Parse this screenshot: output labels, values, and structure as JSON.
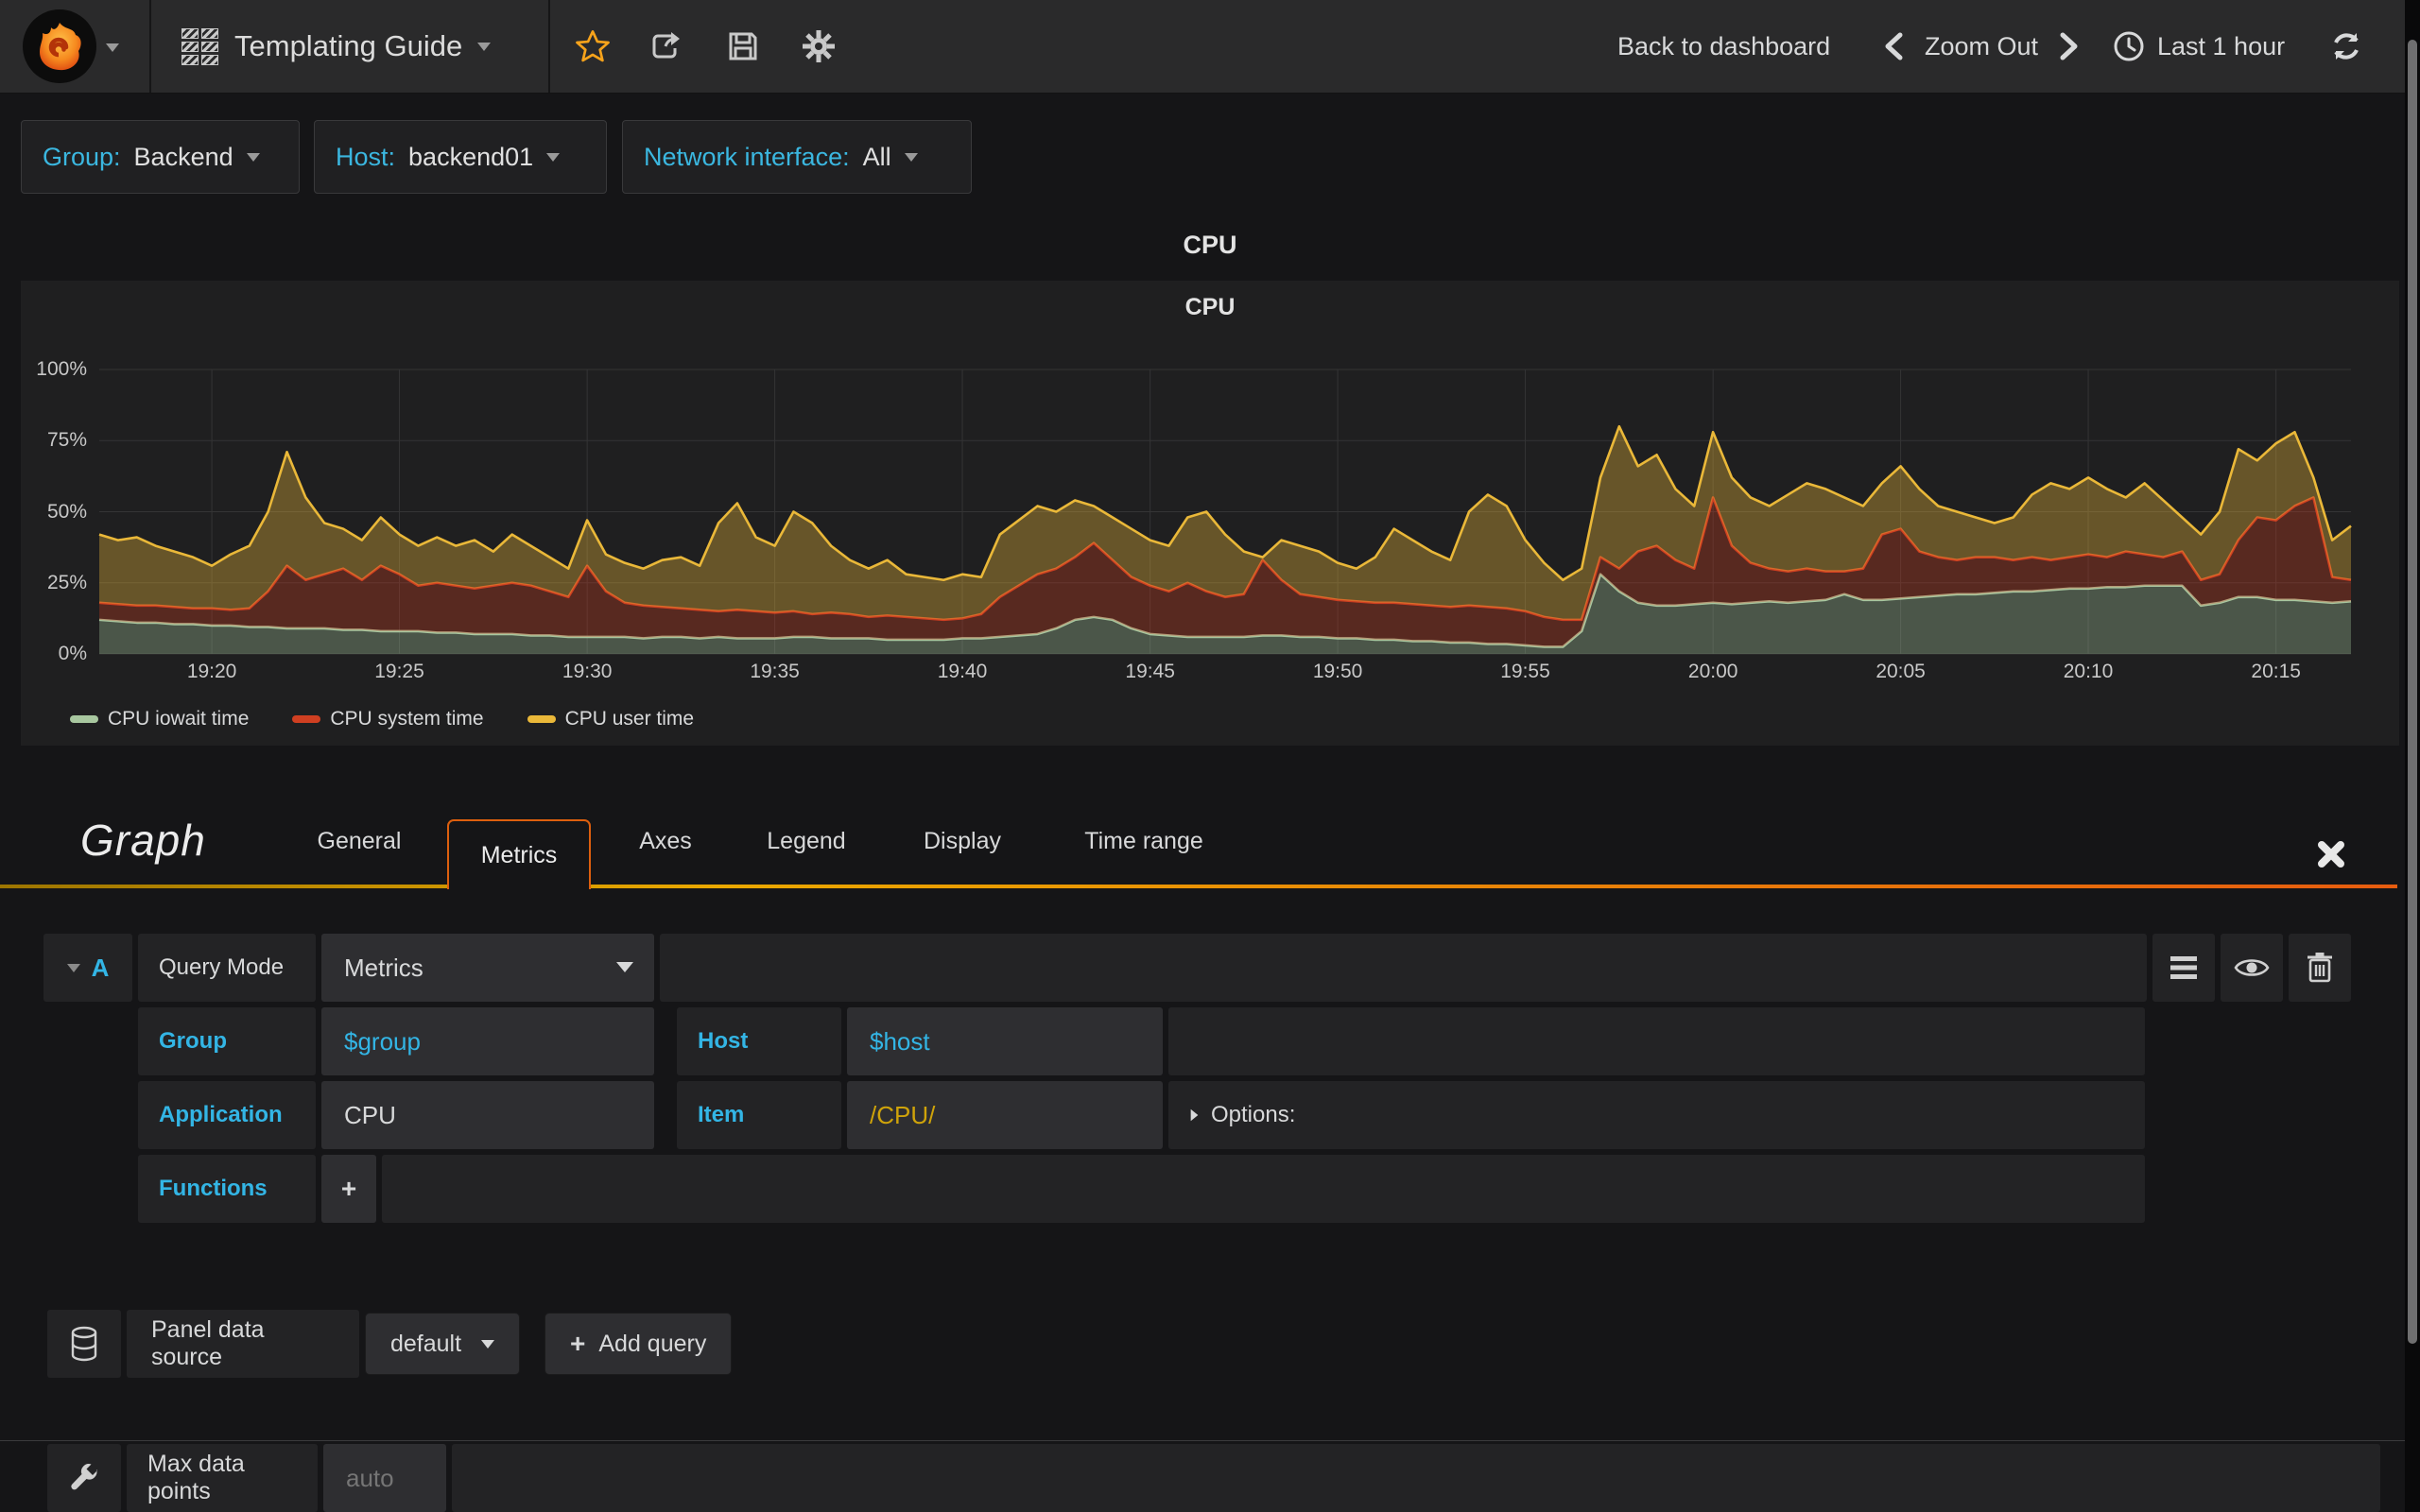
{
  "navbar": {
    "title": "Templating Guide",
    "back": "Back to dashboard",
    "zoom_out": "Zoom Out",
    "time_range": "Last 1 hour"
  },
  "variables": [
    {
      "label": "Group:",
      "value": "Backend"
    },
    {
      "label": "Host:",
      "value": "backend01"
    },
    {
      "label": "Network interface:",
      "value": "All"
    }
  ],
  "row_title": "CPU",
  "panel_title": "CPU",
  "editor": {
    "title": "Graph",
    "tabs": [
      {
        "label": "General"
      },
      {
        "label": "Metrics"
      },
      {
        "label": "Axes"
      },
      {
        "label": "Legend"
      },
      {
        "label": "Display"
      },
      {
        "label": "Time range"
      }
    ],
    "query": {
      "letter": "A",
      "mode_label": "Query Mode",
      "mode_value": "Metrics",
      "group_label": "Group",
      "group_value": "$group",
      "host_label": "Host",
      "host_value": "$host",
      "application_label": "Application",
      "application_value": "CPU",
      "item_label": "Item",
      "item_value": "/CPU/",
      "options_label": "Options:",
      "functions_label": "Functions",
      "add_function": "+"
    },
    "datasource": {
      "label": "Panel data source",
      "value": "default",
      "add_query_plus": "+",
      "add_query_label": "Add query"
    },
    "max_data_points": {
      "label": "Max data points",
      "placeholder": "auto"
    }
  },
  "chart_data": {
    "type": "area",
    "stacked": true,
    "title": "CPU",
    "unit": "%",
    "ylim": [
      0,
      100
    ],
    "grid": true,
    "legend_position": "bottom",
    "x_start": "19:17",
    "x_end": "20:17",
    "note": "series 'top' arrays are cumulative stack tops in percent, 121 samples over 1 hour",
    "y_ticks": [
      {
        "label": "0%",
        "v": 0
      },
      {
        "label": "25%",
        "v": 25
      },
      {
        "label": "50%",
        "v": 50
      },
      {
        "label": "75%",
        "v": 75
      },
      {
        "label": "100%",
        "v": 100
      }
    ],
    "ticks": [
      {
        "label": "19:20",
        "f": 0.05
      },
      {
        "label": "19:25",
        "f": 0.1333
      },
      {
        "label": "19:30",
        "f": 0.2167
      },
      {
        "label": "19:35",
        "f": 0.3
      },
      {
        "label": "19:40",
        "f": 0.3833
      },
      {
        "label": "19:45",
        "f": 0.4667
      },
      {
        "label": "19:50",
        "f": 0.55
      },
      {
        "label": "19:55",
        "f": 0.6333
      },
      {
        "label": "20:00",
        "f": 0.7167
      },
      {
        "label": "20:05",
        "f": 0.8
      },
      {
        "label": "20:10",
        "f": 0.8833
      },
      {
        "label": "20:15",
        "f": 0.9667
      }
    ],
    "series": [
      {
        "name": "CPU iowait time",
        "color": "#a8c79f",
        "fill": "rgba(168,199,159,0.33)",
        "top": [
          12,
          11.5,
          11,
          11,
          10.5,
          10.5,
          10,
          10,
          9.5,
          9.5,
          9,
          9,
          9,
          8.5,
          8.5,
          8,
          8,
          8,
          7.5,
          7.5,
          7,
          7,
          7,
          6.5,
          6.5,
          6,
          6,
          6,
          6,
          5.5,
          6,
          6,
          5.5,
          6,
          5.5,
          5.5,
          5.5,
          6,
          6,
          5.5,
          5.5,
          5.5,
          5,
          5,
          5,
          5,
          5.5,
          5.5,
          6,
          6.5,
          7,
          9,
          12,
          13,
          12,
          9,
          7,
          6.5,
          6,
          6,
          6,
          6,
          6.5,
          6.5,
          6,
          6,
          5.5,
          5.5,
          5,
          5,
          4.5,
          4.5,
          4,
          4,
          3.5,
          3.5,
          3,
          2.5,
          2.5,
          8,
          28,
          22,
          18,
          17,
          17,
          17.5,
          18,
          17.5,
          18,
          18.5,
          18,
          18.5,
          19,
          21,
          19,
          19,
          19.5,
          20,
          20.5,
          21,
          21,
          21.5,
          22,
          22,
          22.5,
          23,
          23,
          23.5,
          23.5,
          24,
          24,
          24,
          17,
          18,
          20,
          20,
          19,
          19,
          18.5,
          18,
          18.5
        ]
      },
      {
        "name": "CPU system time",
        "color": "#cf3f21",
        "fill": "rgba(207,63,33,0.32)",
        "top": [
          18,
          17.5,
          17,
          17,
          16.5,
          16,
          16,
          15.5,
          16,
          22,
          31,
          26,
          28,
          30,
          26,
          31,
          28,
          24,
          25,
          24,
          23,
          24,
          25,
          24,
          22,
          20,
          31,
          22,
          18,
          17,
          16.5,
          16,
          15.5,
          15,
          15.5,
          15,
          14.5,
          15,
          14,
          14.5,
          14,
          13,
          13.5,
          13,
          12.5,
          12,
          12.5,
          14,
          20,
          24,
          28,
          30,
          34,
          39,
          33,
          27,
          24,
          22,
          25,
          22,
          20,
          21,
          33,
          26,
          21,
          20,
          19,
          18.5,
          18,
          18,
          17.5,
          17,
          16.5,
          17,
          16.5,
          16,
          15,
          13,
          12,
          12,
          34,
          30,
          36,
          38,
          33,
          30,
          55,
          38,
          32,
          30,
          29,
          30,
          29,
          29,
          30,
          42,
          44,
          36,
          34,
          33,
          34,
          34,
          33,
          34,
          33,
          34,
          35,
          34,
          36,
          35,
          34,
          36,
          26,
          28,
          40,
          48,
          47,
          52,
          55,
          27,
          26
        ]
      },
      {
        "name": "CPU user time",
        "color": "#eab839",
        "fill": "rgba(234,184,57,0.36)",
        "top": [
          42,
          40,
          41,
          38,
          36,
          34,
          31,
          35,
          38,
          50,
          71,
          55,
          46,
          44,
          40,
          48,
          42,
          38,
          41,
          38,
          40,
          36,
          42,
          38,
          34,
          30,
          47,
          35,
          32,
          30,
          33,
          34,
          31,
          46,
          53,
          41,
          38,
          50,
          46,
          38,
          33,
          30,
          33,
          28,
          27,
          26,
          28,
          27,
          42,
          47,
          52,
          50,
          54,
          52,
          48,
          44,
          40,
          38,
          48,
          50,
          42,
          36,
          34,
          40,
          38,
          36,
          32,
          30,
          34,
          44,
          40,
          36,
          33,
          50,
          56,
          52,
          40,
          32,
          26,
          30,
          62,
          80,
          66,
          70,
          58,
          52,
          78,
          62,
          55,
          52,
          56,
          60,
          58,
          55,
          52,
          60,
          66,
          58,
          52,
          50,
          48,
          46,
          48,
          56,
          60,
          58,
          62,
          58,
          55,
          60,
          54,
          48,
          42,
          50,
          72,
          68,
          74,
          78,
          62,
          40,
          45
        ]
      }
    ]
  }
}
